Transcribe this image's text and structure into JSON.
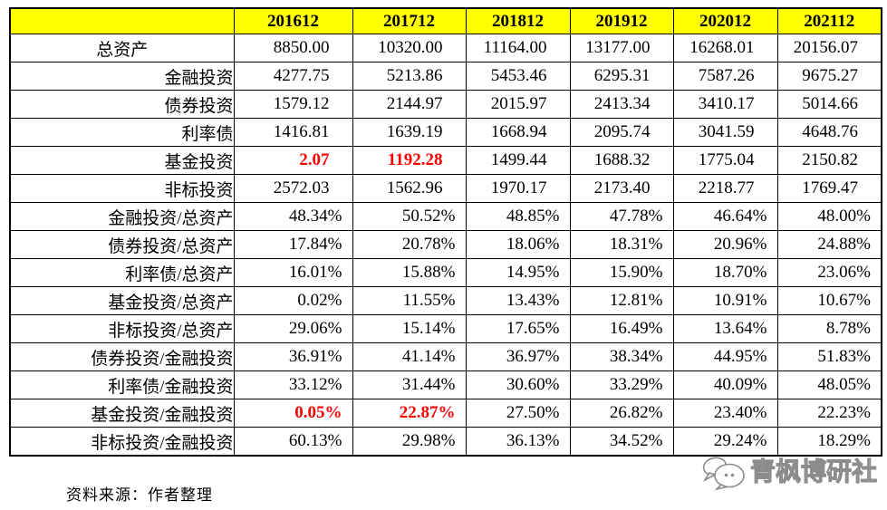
{
  "table": {
    "header_bg": "#ffff00",
    "accent_red": "#ff0000",
    "header": {
      "corner": "",
      "years": [
        "201612",
        "201712",
        "201812",
        "201912",
        "202012",
        "202112"
      ]
    },
    "rows": [
      {
        "label": "总资产",
        "format": "number",
        "label_align": "center",
        "values": [
          "8850.00",
          "10320.00",
          "11164.00",
          "13177.00",
          "16268.01",
          "20156.07"
        ]
      },
      {
        "label": "金融投资",
        "format": "number",
        "values": [
          "4277.75",
          "5213.86",
          "5453.46",
          "6295.31",
          "7587.26",
          "9675.27"
        ]
      },
      {
        "label": "债券投资",
        "format": "number",
        "values": [
          "1579.12",
          "2144.97",
          "2015.97",
          "2413.34",
          "3410.17",
          "5014.66"
        ]
      },
      {
        "label": "利率债",
        "format": "number",
        "values": [
          "1416.81",
          "1639.19",
          "1668.94",
          "2095.74",
          "3041.59",
          "4648.76"
        ]
      },
      {
        "label": "基金投资",
        "format": "number",
        "red": [
          0,
          1
        ],
        "values": [
          "2.07",
          "1192.28",
          "1499.44",
          "1688.32",
          "1775.04",
          "2150.82"
        ]
      },
      {
        "label": "非标投资",
        "format": "number",
        "values": [
          "2572.03",
          "1562.96",
          "1970.17",
          "2173.40",
          "2218.77",
          "1769.47"
        ]
      },
      {
        "label": "金融投资/总资产",
        "format": "percent",
        "values": [
          "48.34%",
          "50.52%",
          "48.85%",
          "47.78%",
          "46.64%",
          "48.00%"
        ]
      },
      {
        "label": "债券投资/总资产",
        "format": "percent",
        "values": [
          "17.84%",
          "20.78%",
          "18.06%",
          "18.31%",
          "20.96%",
          "24.88%"
        ]
      },
      {
        "label": "利率债/总资产",
        "format": "percent",
        "values": [
          "16.01%",
          "15.88%",
          "14.95%",
          "15.90%",
          "18.70%",
          "23.06%"
        ]
      },
      {
        "label": "基金投资/总资产",
        "format": "percent",
        "values": [
          "0.02%",
          "11.55%",
          "13.43%",
          "12.81%",
          "10.91%",
          "10.67%"
        ]
      },
      {
        "label": "非标投资/总资产",
        "format": "percent",
        "values": [
          "29.06%",
          "15.14%",
          "17.65%",
          "16.49%",
          "13.64%",
          "8.78%"
        ]
      },
      {
        "label": "债券投资/金融投资",
        "format": "percent",
        "values": [
          "36.91%",
          "41.14%",
          "36.97%",
          "38.34%",
          "44.95%",
          "51.83%"
        ]
      },
      {
        "label": "利率债/金融投资",
        "format": "percent",
        "values": [
          "33.12%",
          "31.44%",
          "30.60%",
          "33.29%",
          "40.09%",
          "48.05%"
        ]
      },
      {
        "label": "基金投资/金融投资",
        "format": "percent",
        "red": [
          0,
          1
        ],
        "values": [
          "0.05%",
          "22.87%",
          "27.50%",
          "26.82%",
          "23.40%",
          "22.23%"
        ]
      },
      {
        "label": "非标投资/金融投资",
        "format": "percent",
        "values": [
          "60.13%",
          "29.98%",
          "36.13%",
          "34.52%",
          "29.24%",
          "18.29%"
        ]
      }
    ]
  },
  "footer": {
    "source_note": "资料来源：作者整理"
  },
  "watermark": {
    "text": "青枫博研社",
    "logo": "chat-bubbles-logo",
    "color": "#8c8c8c"
  }
}
